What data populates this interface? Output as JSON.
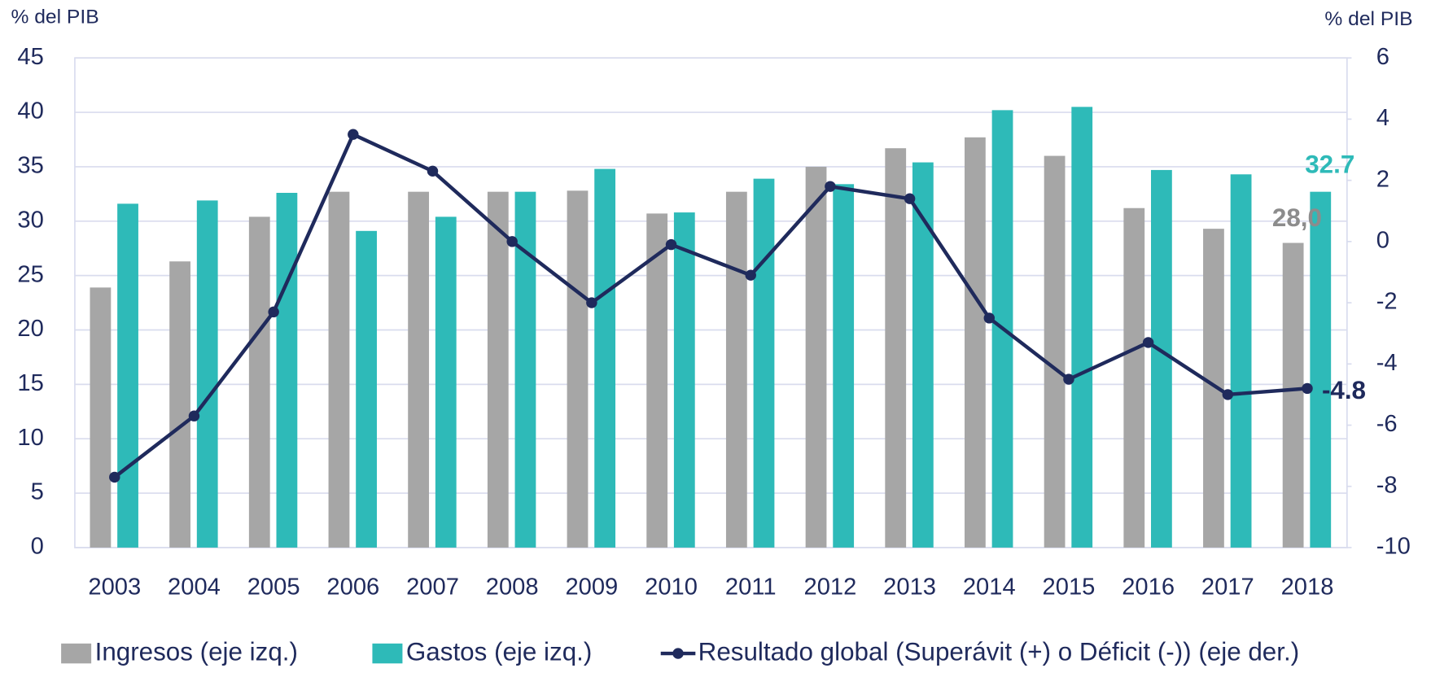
{
  "chart_data": {
    "type": "bar_line",
    "y_label": "% del PIB",
    "y2_label": "% del PIB",
    "categories": [
      "2003",
      "2004",
      "2005",
      "2006",
      "2007",
      "2008",
      "2009",
      "2010",
      "2011",
      "2012",
      "2013",
      "2014",
      "2015",
      "2016",
      "2017",
      "2018"
    ],
    "series": [
      {
        "name": "Ingresos (eje izq.)",
        "color": "#a6a6a6",
        "type": "bar",
        "values": [
          23.9,
          26.3,
          30.4,
          32.7,
          32.7,
          32.7,
          32.8,
          30.7,
          32.7,
          35.0,
          36.7,
          37.7,
          36.0,
          31.2,
          29.3,
          28.0
        ],
        "value_labels": [
          null,
          null,
          null,
          null,
          null,
          null,
          null,
          null,
          null,
          null,
          null,
          null,
          null,
          null,
          null,
          "28,0"
        ]
      },
      {
        "name": "Gastos (eje izq.)",
        "color": "#2ebab8",
        "type": "bar",
        "values": [
          31.6,
          31.9,
          32.6,
          29.1,
          30.4,
          32.7,
          34.8,
          30.8,
          33.9,
          33.4,
          35.4,
          40.2,
          40.5,
          34.7,
          34.3,
          32.7
        ]
      },
      {
        "name": "Resultado global (Superávit (+) o Déficit (-)) (eje der.)",
        "color": "#1f2a5c",
        "type": "line",
        "axis": "y2",
        "values": [
          -7.7,
          -5.7,
          -2.3,
          3.5,
          2.3,
          0.0,
          -2.0,
          -0.1,
          -1.1,
          1.8,
          1.4,
          -2.5,
          -4.5,
          -3.3,
          -5.0,
          -4.8
        ]
      }
    ],
    "ylim": [
      0,
      45
    ],
    "yticks": [
      0,
      5,
      10,
      15,
      20,
      25,
      30,
      35,
      40,
      45
    ],
    "y2lim": [
      -10,
      6
    ],
    "y2ticks": [
      -10,
      -8,
      -6,
      -4,
      -2,
      0,
      2,
      4,
      6
    ],
    "grid": true,
    "legend": "bottom"
  }
}
